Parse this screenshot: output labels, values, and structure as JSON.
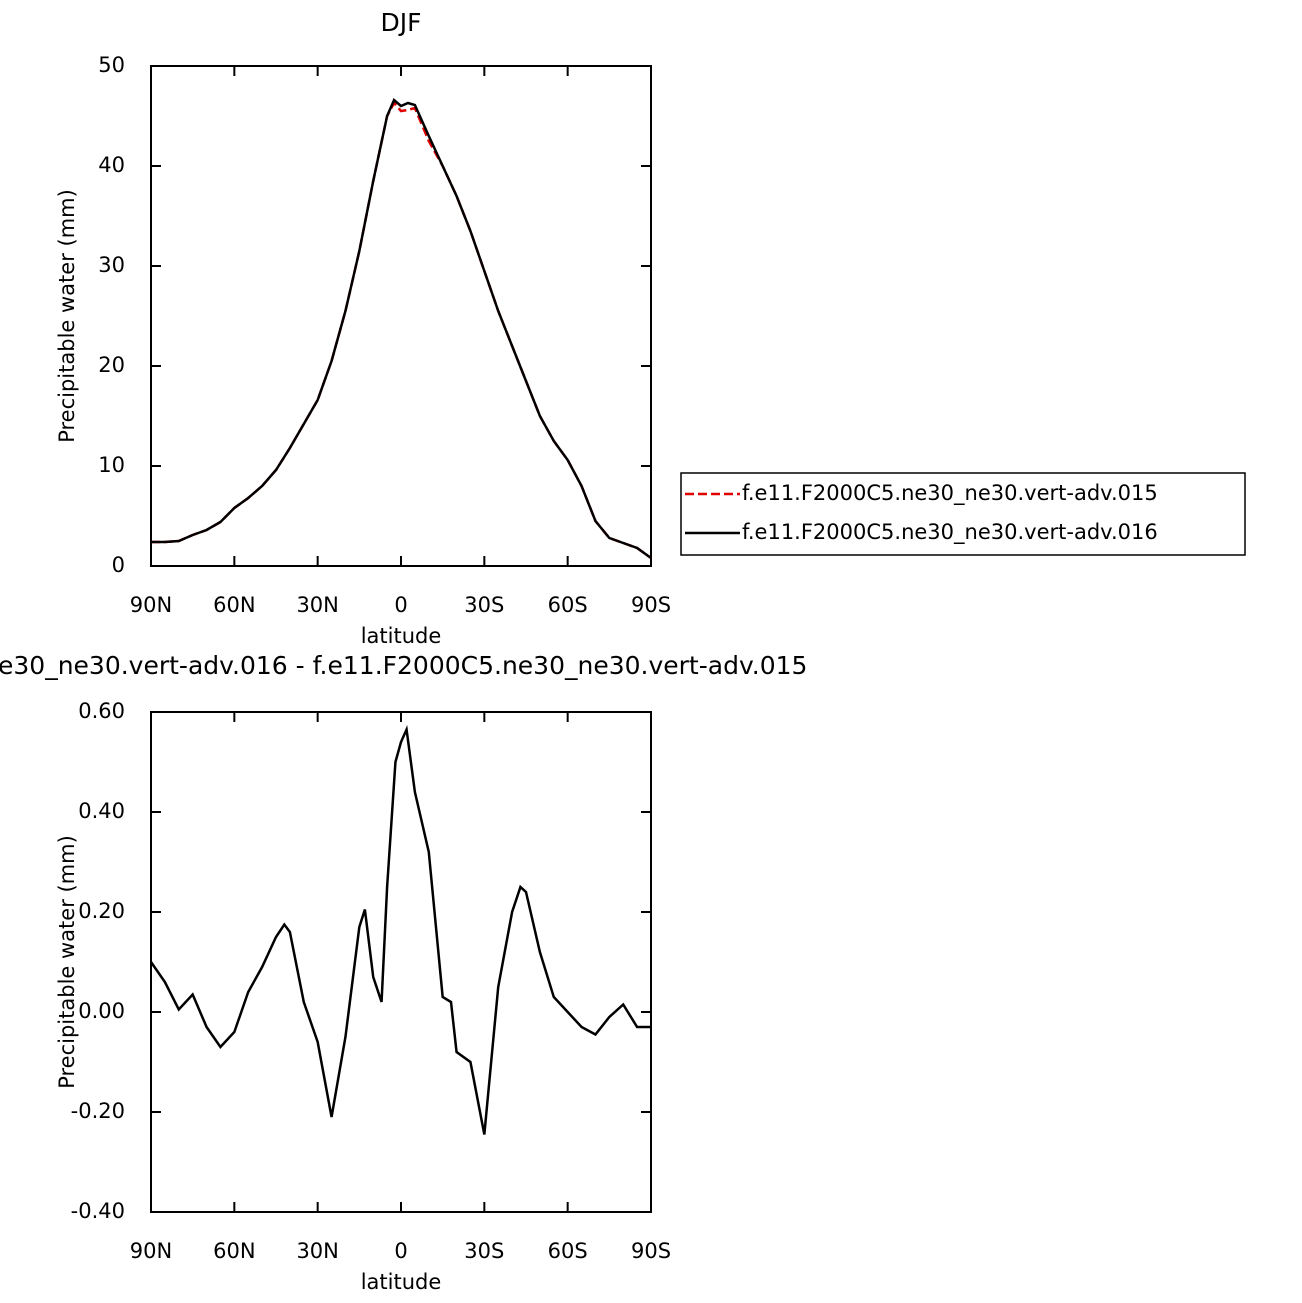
{
  "chart_data": [
    {
      "type": "line",
      "title": "DJF",
      "x_label": "latitude",
      "y_label": "Precipitable water (mm)",
      "xlim": [
        90,
        -90
      ],
      "xticks": [
        {
          "value": 90,
          "label": "90N"
        },
        {
          "value": 60,
          "label": "60N"
        },
        {
          "value": 30,
          "label": "30N"
        },
        0,
        {
          "value": -30,
          "label": "30S"
        },
        {
          "value": -60,
          "label": "60S"
        },
        {
          "value": -90,
          "label": "90S"
        }
      ],
      "ylim": [
        0,
        50
      ],
      "yticks": [
        0,
        10,
        20,
        30,
        40,
        50
      ],
      "x": [
        90,
        85,
        80,
        75,
        70,
        65,
        60,
        55,
        50,
        45,
        40,
        35,
        30,
        25,
        20,
        15,
        10,
        5,
        2.5,
        0,
        -2.5,
        -5,
        -10,
        -15,
        -20,
        -25,
        -30,
        -35,
        -40,
        -45,
        -50,
        -55,
        -60,
        -65,
        -70,
        -75,
        -80,
        -85,
        -90
      ],
      "series": [
        {
          "name": "f.e11.F2000C5.ne30_ne30.vert-adv.015",
          "color": "#e00000",
          "dashed": true,
          "values": [
            2.4,
            2.4,
            2.5,
            3.1,
            3.6,
            4.4,
            5.8,
            6.8,
            8.0,
            9.6,
            11.8,
            14.2,
            16.6,
            20.5,
            25.5,
            31.5,
            38.5,
            45.0,
            46.3,
            45.5,
            45.6,
            45.8,
            42.5,
            40.0,
            37.0,
            33.5,
            29.5,
            25.5,
            22.0,
            18.5,
            15.0,
            12.5,
            10.6,
            8.0,
            4.5,
            2.8,
            2.3,
            1.8,
            0.8
          ]
        },
        {
          "name": "f.e11.F2000C5.ne30_ne30.vert-adv.016",
          "color": "#000000",
          "dashed": false,
          "values": [
            2.4,
            2.4,
            2.5,
            3.1,
            3.6,
            4.4,
            5.8,
            6.8,
            8.0,
            9.6,
            11.8,
            14.2,
            16.6,
            20.5,
            25.5,
            31.5,
            38.5,
            45.0,
            46.6,
            46.0,
            46.3,
            46.1,
            43.0,
            40.0,
            37.0,
            33.5,
            29.5,
            25.5,
            22.0,
            18.5,
            15.0,
            12.5,
            10.6,
            8.0,
            4.5,
            2.8,
            2.3,
            1.8,
            0.8
          ]
        }
      ]
    },
    {
      "type": "line",
      "title": "e30_ne30.vert-adv.016 - f.e11.F2000C5.ne30_ne30.vert-adv.015",
      "x_label": "latitude",
      "y_label": "Precipitable water (mm)",
      "xlim": [
        90,
        -90
      ],
      "xticks": [
        {
          "value": 90,
          "label": "90N"
        },
        {
          "value": 60,
          "label": "60N"
        },
        {
          "value": 30,
          "label": "30N"
        },
        0,
        {
          "value": -30,
          "label": "30S"
        },
        {
          "value": -60,
          "label": "60S"
        },
        {
          "value": -90,
          "label": "90S"
        }
      ],
      "ylim": [
        -0.4,
        0.6
      ],
      "yticks": [
        {
          "value": -0.4,
          "label": "-0.40"
        },
        {
          "value": -0.2,
          "label": "-0.20"
        },
        {
          "value": 0,
          "label": "0.00"
        },
        {
          "value": 0.2,
          "label": "0.20"
        },
        {
          "value": 0.4,
          "label": "0.40"
        },
        {
          "value": 0.6,
          "label": "0.60"
        }
      ],
      "x": [
        90,
        85,
        80,
        75,
        70,
        65,
        60,
        55,
        50,
        45,
        42,
        40,
        35,
        30,
        25,
        20,
        15,
        13,
        10,
        7,
        5,
        2,
        0,
        -2,
        -5,
        -10,
        -15,
        -18,
        -20,
        -25,
        -30,
        -35,
        -40,
        -43,
        -45,
        -50,
        -55,
        -60,
        -65,
        -70,
        -75,
        -80,
        -85,
        -90
      ],
      "series": [
        {
          "color": "#000000",
          "dashed": false,
          "values": [
            0.1,
            0.06,
            0.005,
            0.035,
            -0.03,
            -0.07,
            -0.04,
            0.04,
            0.09,
            0.15,
            0.175,
            0.16,
            0.02,
            -0.06,
            -0.21,
            -0.05,
            0.17,
            0.205,
            0.07,
            0.02,
            0.25,
            0.5,
            0.54,
            0.565,
            0.44,
            0.32,
            0.03,
            0.02,
            -0.08,
            -0.1,
            -0.245,
            0.05,
            0.2,
            0.25,
            0.24,
            0.12,
            0.03,
            0.0,
            -0.03,
            -0.045,
            -0.01,
            0.015,
            -0.03,
            -0.03
          ]
        }
      ]
    }
  ]
}
